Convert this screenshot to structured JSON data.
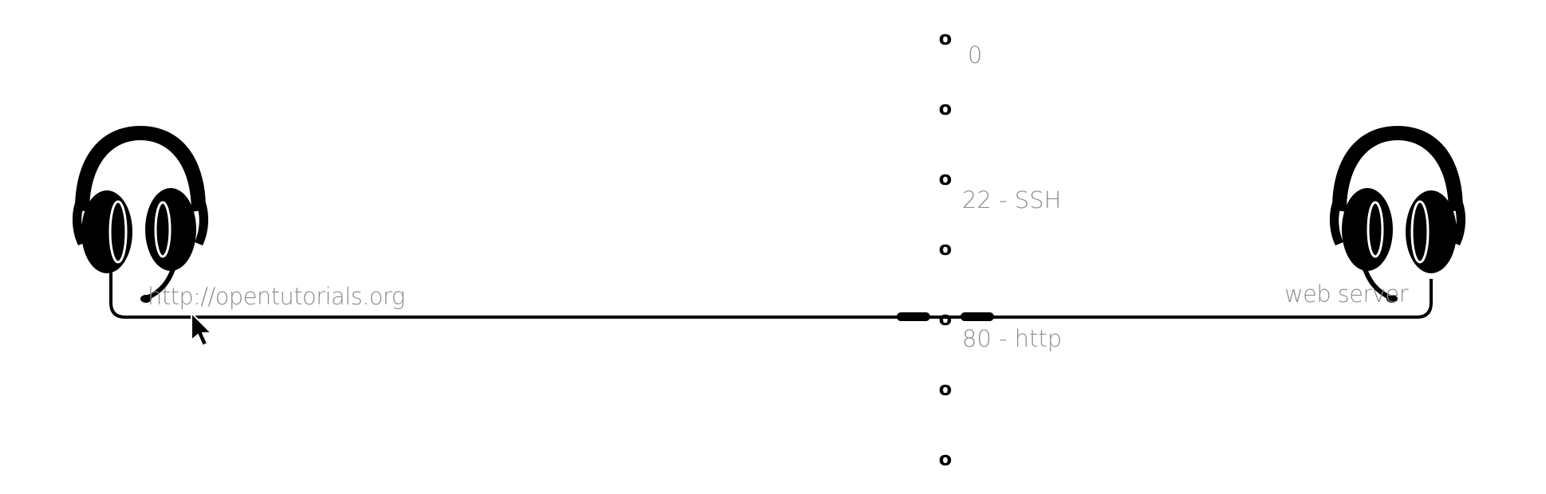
{
  "client": {
    "label": "http://opentutorials.org",
    "icon": "headphones-icon"
  },
  "server": {
    "label": "web server",
    "icon": "headphones-icon"
  },
  "ports": {
    "marker": "o",
    "labels": [
      "0",
      "22 - SSH",
      "80 - http"
    ]
  },
  "colors": {
    "line": "#000000",
    "label_text": "#8e8e8e"
  }
}
